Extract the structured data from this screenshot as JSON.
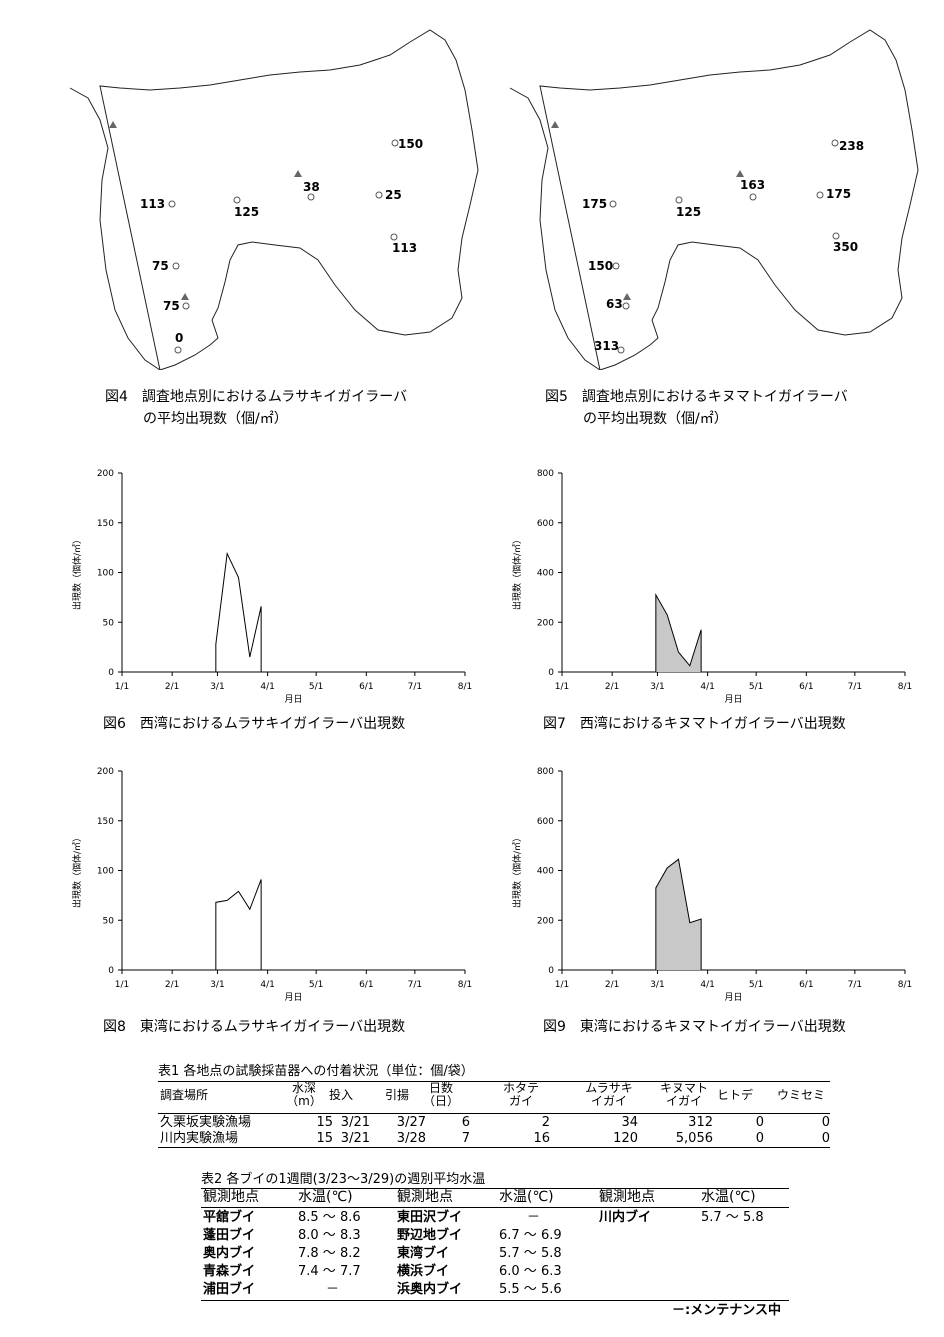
{
  "fig4": {
    "caption_line1": "図4　調査地点別におけるムラサキイガイラーバ",
    "caption_line2": "の平均出現数（個/㎡）",
    "labels": [
      "150",
      "38",
      "25",
      "113",
      "125",
      "113",
      "75",
      "75",
      "0"
    ]
  },
  "fig5": {
    "caption_line1": "図5　調査地点別におけるキヌマトイガイラーバ",
    "caption_line2": "の平均出現数（個/㎡）",
    "labels": [
      "238",
      "163",
      "175",
      "175",
      "125",
      "350",
      "150",
      "63",
      "313"
    ]
  },
  "charts_common": {
    "x_ticks": [
      "1/1",
      "2/1",
      "3/1",
      "4/1",
      "5/1",
      "6/1",
      "7/1",
      "8/1"
    ],
    "xlabel": "月日",
    "ylabel": "出現数（個体/㎥）"
  },
  "chart_data": [
    {
      "id": "fig6",
      "type": "line",
      "fill": false,
      "caption": "図6　西湾におけるムラサキイガイラーバ出現数",
      "ylim": [
        0,
        200
      ],
      "yticks": [
        "0",
        "50",
        "100",
        "150",
        "200"
      ],
      "x": [
        "2/28",
        "3/7",
        "3/14",
        "3/21",
        "3/28"
      ],
      "values": [
        28,
        119,
        95,
        15,
        66
      ]
    },
    {
      "id": "fig7",
      "type": "area",
      "fill": true,
      "caption": "図7　西湾におけるキヌマトイガイラーバ出現数",
      "ylim": [
        0,
        800
      ],
      "yticks": [
        "0",
        "200",
        "400",
        "600",
        "800"
      ],
      "x": [
        "2/28",
        "3/7",
        "3/14",
        "3/21",
        "3/28"
      ],
      "values": [
        310,
        230,
        80,
        25,
        170
      ]
    },
    {
      "id": "fig8",
      "type": "line",
      "fill": false,
      "caption": "図8　東湾におけるムラサキイガイラーバ出現数",
      "ylim": [
        0,
        200
      ],
      "yticks": [
        "0",
        "50",
        "100",
        "150",
        "200"
      ],
      "x": [
        "2/28",
        "3/7",
        "3/14",
        "3/21",
        "3/28"
      ],
      "values": [
        68,
        70,
        79,
        61,
        91
      ]
    },
    {
      "id": "fig9",
      "type": "area",
      "fill": true,
      "caption": "図9　東湾におけるキヌマトイガイラーバ出現数",
      "ylim": [
        0,
        800
      ],
      "yticks": [
        "0",
        "200",
        "400",
        "600",
        "800"
      ],
      "x": [
        "2/28",
        "3/7",
        "3/14",
        "3/21",
        "3/28"
      ],
      "values": [
        330,
        410,
        445,
        190,
        205
      ]
    }
  ],
  "table1": {
    "title": "表1  各地点の試験採苗器への付着状況（単位：個/袋）",
    "headers": [
      "調査場所",
      "水深\n（m）",
      "投入",
      "引揚",
      "日数\n（日）",
      "ホタテ\nガイ",
      "ムラサキ\nイガイ",
      "キヌマト\nイガイ",
      "ヒトデ",
      "ウミセミ"
    ],
    "rows": [
      [
        "久栗坂実験漁場",
        "15",
        "3/21",
        "3/27",
        "6",
        "2",
        "34",
        "312",
        "0",
        "0"
      ],
      [
        "川内実験漁場",
        "15",
        "3/21",
        "3/28",
        "7",
        "16",
        "120",
        "5,056",
        "0",
        "0"
      ]
    ]
  },
  "table2": {
    "title": "表2  各ブイの1週間(3/23～3/29)の週別平均水温",
    "headers": [
      "観測地点",
      "水温(℃)",
      "観測地点",
      "水温(℃)",
      "観測地点",
      "水温(℃)"
    ],
    "rows": [
      [
        "平舘ブイ",
        "8.5 ～ 8.6",
        "東田沢ブイ",
        "－",
        "川内ブイ",
        "5.7 ～ 5.8"
      ],
      [
        "蓬田ブイ",
        "8.0 ～ 8.3",
        "野辺地ブイ",
        "6.7 ～ 6.9",
        "",
        ""
      ],
      [
        "奥内ブイ",
        "7.8 ～ 8.2",
        "東湾ブイ",
        "5.7 ～ 5.8",
        "",
        ""
      ],
      [
        "青森ブイ",
        "7.4 ～ 7.7",
        "横浜ブイ",
        "6.0 ～ 6.3",
        "",
        ""
      ],
      [
        "浦田ブイ",
        "－",
        "浜奥内ブイ",
        "5.5 ～ 5.6",
        "",
        ""
      ]
    ],
    "footnote": "－:メンテナンス中"
  }
}
